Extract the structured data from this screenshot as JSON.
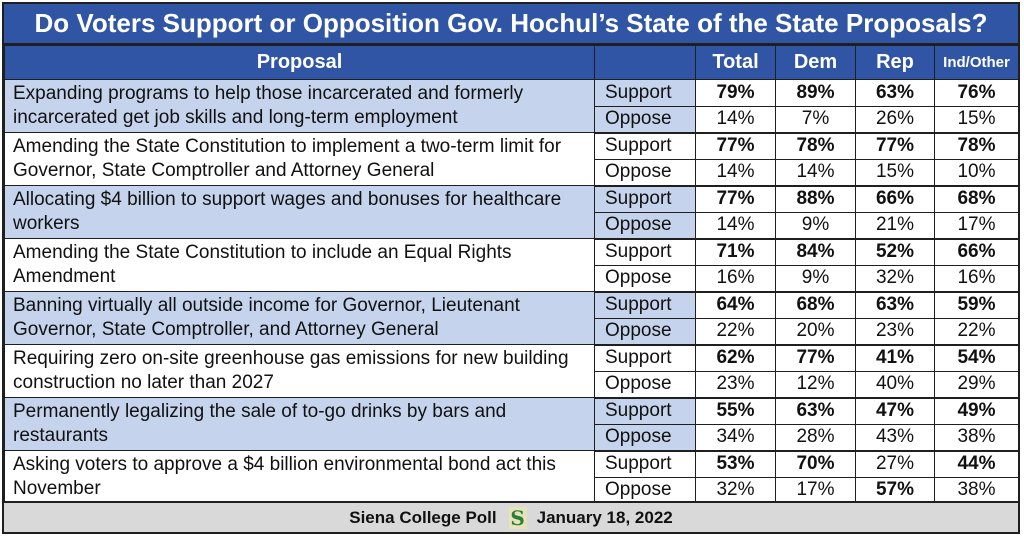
{
  "title": "Do Voters Support or Opposition Gov. Hochul’s State of the State Proposals?",
  "headers": {
    "proposal": "Proposal",
    "total": "Total",
    "dem": "Dem",
    "rep": "Rep",
    "ind": "Ind/Other"
  },
  "colors": {
    "header_blue": "#2f55a4",
    "shade_blue": "#c5d4ec",
    "footer_gray": "#d9d9d9"
  },
  "rows": [
    {
      "proposal": "Expanding programs to help those incarcerated and formerly incarcerated get job skills and long-term employment",
      "support": {
        "label": "Support",
        "total": "79%",
        "dem": "89%",
        "rep": "63%",
        "ind": "76%"
      },
      "oppose": {
        "label": "Oppose",
        "total": "14%",
        "dem": "7%",
        "rep": "26%",
        "ind": "15%"
      }
    },
    {
      "proposal": "Amending the State Constitution to implement a two-term limit for Governor, State Comptroller and Attorney General",
      "support": {
        "label": "Support",
        "total": "77%",
        "dem": "78%",
        "rep": "77%",
        "ind": "78%"
      },
      "oppose": {
        "label": "Oppose",
        "total": "14%",
        "dem": "14%",
        "rep": "15%",
        "ind": "10%"
      }
    },
    {
      "proposal": "Allocating $4 billion to support wages and bonuses for healthcare workers",
      "support": {
        "label": "Support",
        "total": "77%",
        "dem": "88%",
        "rep": "66%",
        "ind": "68%"
      },
      "oppose": {
        "label": "Oppose",
        "total": "14%",
        "dem": "9%",
        "rep": "21%",
        "ind": "17%"
      }
    },
    {
      "proposal": "Amending the State Constitution to include an Equal Rights Amendment",
      "support": {
        "label": "Support",
        "total": "71%",
        "dem": "84%",
        "rep": "52%",
        "ind": "66%"
      },
      "oppose": {
        "label": "Oppose",
        "total": "16%",
        "dem": "9%",
        "rep": "32%",
        "ind": "16%"
      }
    },
    {
      "proposal": "Banning virtually all outside income for Governor, Lieutenant Governor, State Comptroller, and Attorney General",
      "support": {
        "label": "Support",
        "total": "64%",
        "dem": "68%",
        "rep": "63%",
        "ind": "59%"
      },
      "oppose": {
        "label": "Oppose",
        "total": "22%",
        "dem": "20%",
        "rep": "23%",
        "ind": "22%"
      }
    },
    {
      "proposal": "Requiring zero on-site greenhouse gas emissions for new building construction no later than 2027",
      "support": {
        "label": "Support",
        "total": "62%",
        "dem": "77%",
        "rep": "41%",
        "ind": "54%"
      },
      "oppose": {
        "label": "Oppose",
        "total": "23%",
        "dem": "12%",
        "rep": "40%",
        "ind": "29%"
      }
    },
    {
      "proposal": "Permanently legalizing the sale of to-go drinks by bars and restaurants",
      "support": {
        "label": "Support",
        "total": "55%",
        "dem": "63%",
        "rep": "47%",
        "ind": "49%"
      },
      "oppose": {
        "label": "Oppose",
        "total": "34%",
        "dem": "28%",
        "rep": "43%",
        "ind": "38%"
      }
    },
    {
      "proposal": "Asking voters to approve a $4 billion environmental bond act this November",
      "support": {
        "label": "Support",
        "total": "53%",
        "dem": "70%",
        "rep": "27%",
        "ind": "44%"
      },
      "oppose": {
        "label": "Oppose",
        "total": "32%",
        "dem": "17%",
        "rep": "57%",
        "ind": "38%"
      }
    }
  ],
  "bold_cells": [
    [
      "s",
      "total"
    ],
    [
      "s",
      "dem"
    ],
    [
      "s",
      "rep"
    ],
    [
      "s",
      "ind"
    ],
    [
      "s",
      "total"
    ],
    [
      "s",
      "dem"
    ],
    [
      "s",
      "rep"
    ],
    [
      "s",
      "ind"
    ],
    [
      "s",
      "total"
    ],
    [
      "s",
      "dem"
    ],
    [
      "s",
      "rep"
    ],
    [
      "s",
      "ind"
    ],
    [
      "s",
      "total"
    ],
    [
      "s",
      "dem"
    ],
    [
      "s",
      "rep"
    ],
    [
      "s",
      "ind"
    ],
    [
      "s",
      "total"
    ],
    [
      "s",
      "dem"
    ],
    [
      "s",
      "rep"
    ],
    [
      "s",
      "ind"
    ],
    [
      "s",
      "total"
    ],
    [
      "s",
      "dem"
    ],
    [
      "s",
      "rep"
    ],
    [
      "s",
      "ind"
    ],
    [
      "s",
      "total"
    ],
    [
      "s",
      "dem"
    ],
    [
      "s",
      "rep"
    ],
    [
      "s",
      "ind"
    ],
    [
      "s",
      "total"
    ],
    [
      "s",
      "dem"
    ],
    [
      "o",
      "rep"
    ],
    [
      "s",
      "ind"
    ]
  ],
  "footer": {
    "source": "Siena College Poll",
    "logo_letter": "S",
    "date": "January 18, 2022"
  }
}
